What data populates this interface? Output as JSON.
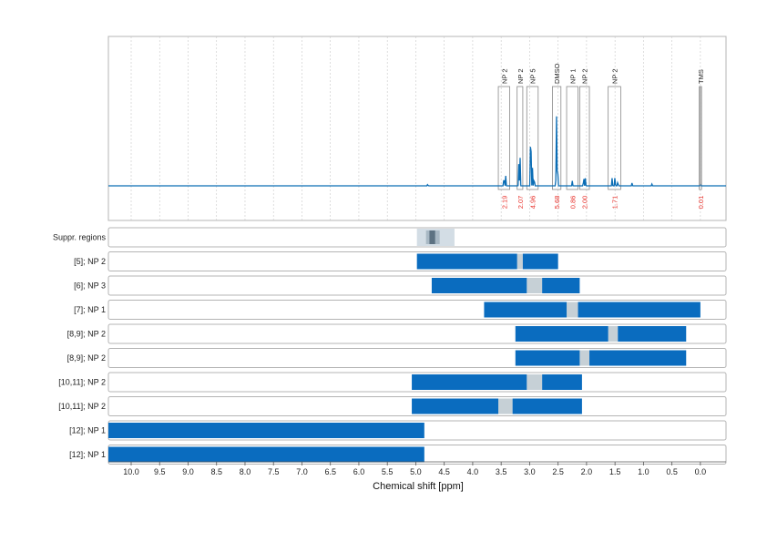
{
  "colors": {
    "spectrum": "#0b6db5",
    "bar": "#0a6cbf",
    "gap": "#c6d0d6",
    "suppr_light": "#d3dde5",
    "suppr_mid": "#a8b8c4",
    "suppr_dark": "#5d7282",
    "integral": "#e8302a",
    "frame": "#b4b4b4",
    "grid": "#c8c8c8"
  },
  "chart_data": {
    "type": "nmr-spectrum-with-region-bars",
    "xlabel": "Chemical shift [ppm]",
    "xlim": [
      10.4,
      -0.45
    ],
    "x_reversed": true,
    "x_ticks": [
      "10.0",
      "9.5",
      "9.0",
      "8.5",
      "8.0",
      "7.5",
      "7.0",
      "6.5",
      "6.0",
      "5.5",
      "5.0",
      "4.5",
      "4.0",
      "3.5",
      "3.0",
      "2.5",
      "2.0",
      "1.5",
      "1.0",
      "0.5",
      "0.0"
    ],
    "peak_boxes": [
      {
        "label": "NP 2",
        "x1": 3.55,
        "x2": 3.35,
        "integral": "2.19"
      },
      {
        "label": "NP 2",
        "x1": 3.22,
        "x2": 3.12,
        "integral": "2.07"
      },
      {
        "label": "NP 5",
        "x1": 3.05,
        "x2": 2.85,
        "integral": "4.96"
      },
      {
        "label": "DMSO",
        "x1": 2.6,
        "x2": 2.45,
        "integral": "5.68"
      },
      {
        "label": "NP 1",
        "x1": 2.35,
        "x2": 2.15,
        "integral": "0.86"
      },
      {
        "label": "NP 2",
        "x1": 2.12,
        "x2": 1.95,
        "integral": "2.00"
      },
      {
        "label": "NP 2",
        "x1": 1.62,
        "x2": 1.4,
        "integral": "1.71"
      },
      {
        "label": "TMS",
        "x1": 0.02,
        "x2": -0.02,
        "integral": "0.01"
      }
    ],
    "spectrum_peaks": [
      {
        "ppm": 4.79,
        "h": 0.02
      },
      {
        "ppm": 3.45,
        "h": 0.14
      },
      {
        "ppm": 3.42,
        "h": 0.1
      },
      {
        "ppm": 3.17,
        "h": 0.38
      },
      {
        "ppm": 3.19,
        "h": 0.22
      },
      {
        "ppm": 2.98,
        "h": 1.0
      },
      {
        "ppm": 2.95,
        "h": 0.18
      },
      {
        "ppm": 2.92,
        "h": 0.12
      },
      {
        "ppm": 2.53,
        "h": 0.8
      },
      {
        "ppm": 2.51,
        "h": 0.36
      },
      {
        "ppm": 2.25,
        "h": 0.05
      },
      {
        "ppm": 2.05,
        "h": 0.12
      },
      {
        "ppm": 2.02,
        "h": 0.08
      },
      {
        "ppm": 1.55,
        "h": 0.08
      },
      {
        "ppm": 1.5,
        "h": 0.1
      },
      {
        "ppm": 1.45,
        "h": 0.06
      },
      {
        "ppm": 1.2,
        "h": 0.03
      },
      {
        "ppm": 0.85,
        "h": 0.02
      },
      {
        "ppm": 0.0,
        "h": 0.02
      }
    ],
    "suppression": {
      "label": "Suppr. regions",
      "bands": [
        {
          "from": 4.98,
          "to": 4.32,
          "tone": "light"
        },
        {
          "from": 4.82,
          "to": 4.58,
          "tone": "mid"
        },
        {
          "from": 4.76,
          "to": 4.66,
          "tone": "dark"
        }
      ]
    },
    "rows": [
      {
        "label": "[5]; NP 2",
        "segments": [
          [
            4.98,
            3.22
          ],
          [
            3.12,
            2.5
          ]
        ],
        "gaps": [
          [
            3.22,
            3.12
          ]
        ]
      },
      {
        "label": "[6]; NP 3",
        "segments": [
          [
            4.72,
            3.05
          ],
          [
            2.78,
            2.12
          ]
        ],
        "gaps": [
          [
            3.05,
            2.78
          ]
        ]
      },
      {
        "label": "[7]; NP 1",
        "segments": [
          [
            3.8,
            2.35
          ],
          [
            2.15,
            0.0
          ]
        ],
        "gaps": [
          [
            2.35,
            2.15
          ]
        ]
      },
      {
        "label": "[8,9]; NP 2",
        "segments": [
          [
            3.25,
            1.62
          ],
          [
            1.45,
            0.25
          ]
        ],
        "gaps": [
          [
            1.62,
            1.45
          ]
        ]
      },
      {
        "label": "[8,9]; NP 2",
        "segments": [
          [
            3.25,
            2.12
          ],
          [
            1.95,
            0.25
          ]
        ],
        "gaps": [
          [
            2.12,
            1.95
          ]
        ]
      },
      {
        "label": "[10,11]; NP 2",
        "segments": [
          [
            5.07,
            3.05
          ],
          [
            2.78,
            2.08
          ]
        ],
        "gaps": [
          [
            3.05,
            2.78
          ]
        ]
      },
      {
        "label": "[10,11]; NP 2",
        "segments": [
          [
            5.07,
            3.55
          ],
          [
            3.3,
            2.08
          ]
        ],
        "gaps": [
          [
            3.55,
            3.3
          ]
        ]
      },
      {
        "label": "[12]; NP 1",
        "segments": [
          [
            10.4,
            4.85
          ]
        ],
        "gaps": []
      },
      {
        "label": "[12]; NP 1",
        "segments": [
          [
            10.4,
            4.85
          ]
        ],
        "gaps": []
      }
    ]
  }
}
